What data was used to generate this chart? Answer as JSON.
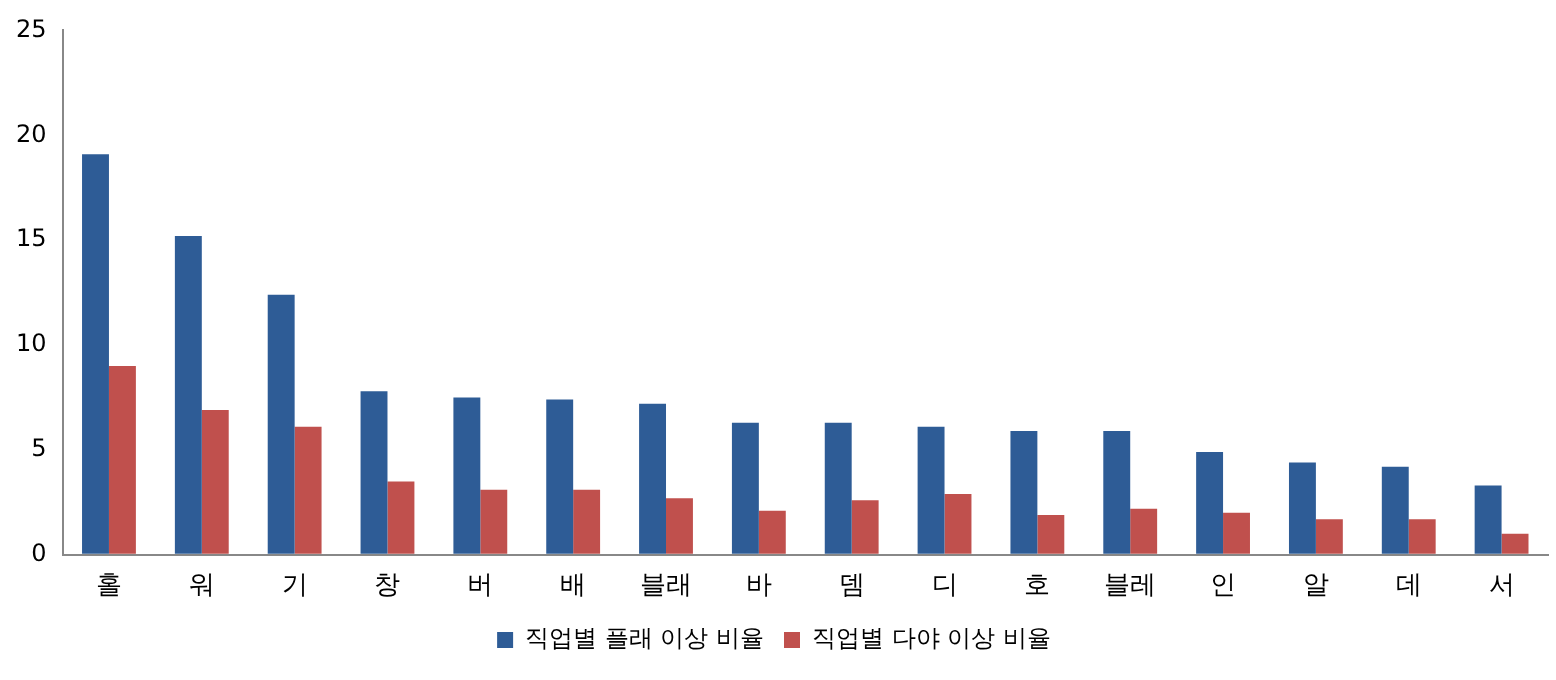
{
  "chart_data": {
    "type": "bar",
    "categories": [
      "홀",
      "워",
      "기",
      "창",
      "버",
      "배",
      "블래",
      "바",
      "뎀",
      "디",
      "호",
      "블레",
      "인",
      "알",
      "데",
      "서"
    ],
    "series": [
      {
        "name": "직업별 플래 이상 비율",
        "color": "#2e5c96",
        "values": [
          19.1,
          15.2,
          12.4,
          7.8,
          7.5,
          7.4,
          7.2,
          6.3,
          6.3,
          6.1,
          5.9,
          5.9,
          4.9,
          4.4,
          4.2,
          3.3
        ]
      },
      {
        "name": "직업별 다야 이상 비율",
        "color": "#c0504d",
        "values": [
          9.0,
          6.9,
          6.1,
          3.5,
          3.1,
          3.1,
          2.7,
          2.1,
          2.6,
          2.9,
          1.9,
          2.2,
          2.0,
          1.7,
          1.7,
          1.0
        ]
      }
    ],
    "ylim": [
      0,
      25
    ],
    "yticks": [
      0,
      5,
      10,
      15,
      20,
      25
    ],
    "grid": false,
    "legend": "bottom"
  }
}
